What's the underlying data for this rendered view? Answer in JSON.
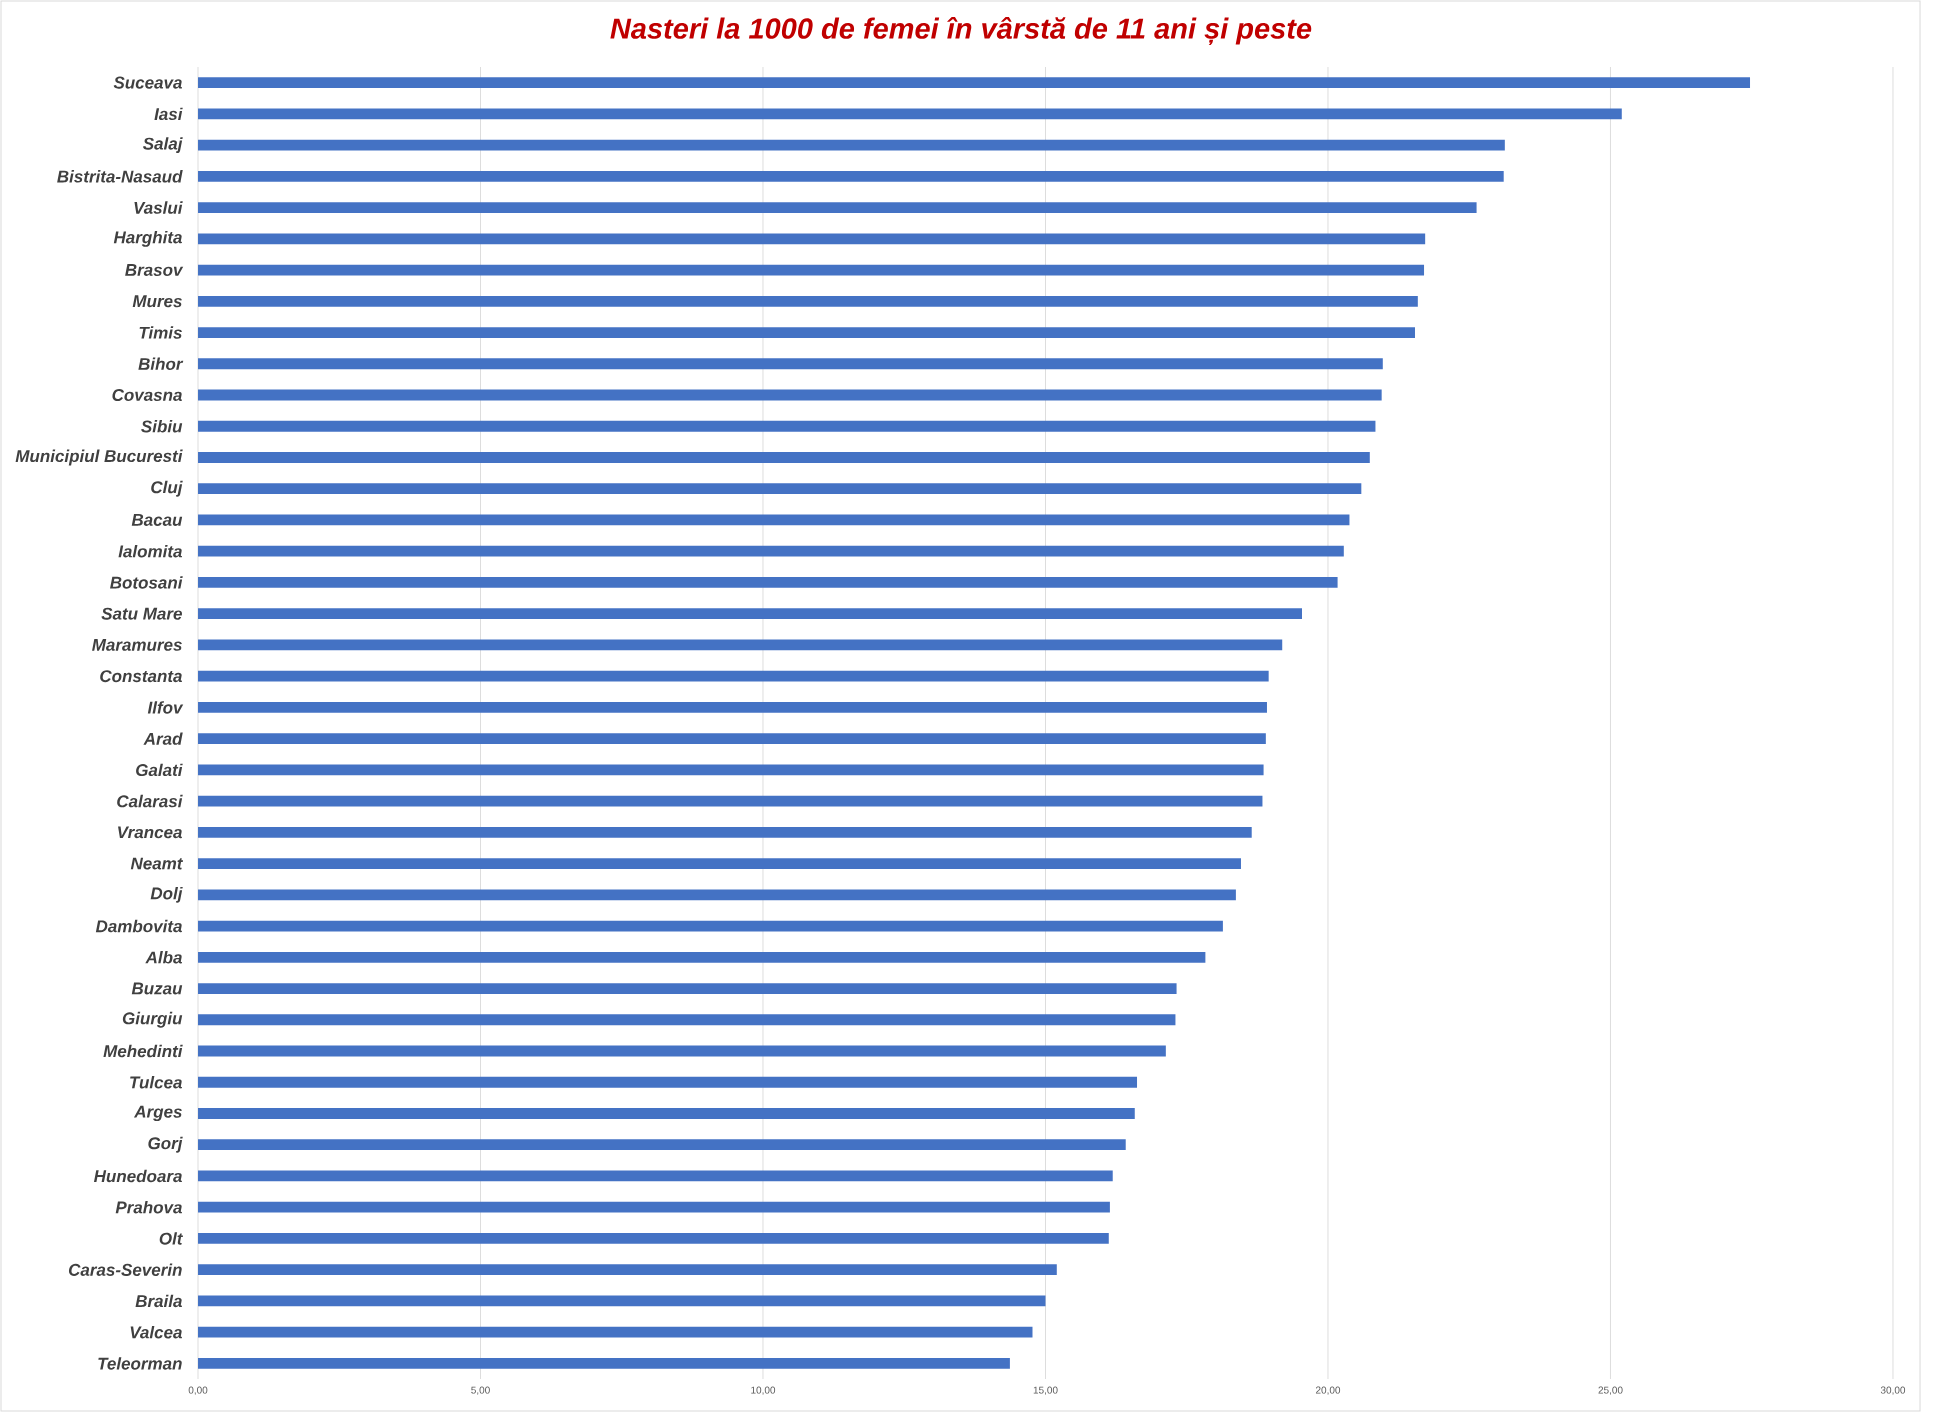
{
  "chart_data": {
    "type": "bar",
    "orientation": "horizontal",
    "title": "Nasteri la 1000 de femei în vârstă de 11 ani și peste",
    "categories": [
      "Suceava",
      "Iasi",
      "Salaj",
      "Bistrita-Nasaud",
      "Vaslui",
      "Harghita",
      "Brasov",
      "Mures",
      "Timis",
      "Bihor",
      "Covasna",
      "Sibiu",
      "Municipiul Bucuresti",
      "Cluj",
      "Bacau",
      "Ialomita",
      "Botosani",
      "Satu Mare",
      "Maramures",
      "Constanta",
      "Ilfov",
      "Arad",
      "Galati",
      "Calarasi",
      "Vrancea",
      "Neamt",
      "Dolj",
      "Dambovita",
      "Alba",
      "Buzau",
      "Giurgiu",
      "Mehedinti",
      "Tulcea",
      "Arges",
      "Gorj",
      "Hunedoara",
      "Prahova",
      "Olt",
      "Caras-Severin",
      "Braila",
      "Valcea",
      "Teleorman"
    ],
    "values": [
      27.47,
      25.2,
      23.13,
      23.11,
      22.63,
      21.72,
      21.7,
      21.59,
      21.54,
      20.97,
      20.95,
      20.84,
      20.74,
      20.59,
      20.38,
      20.28,
      20.17,
      19.54,
      19.19,
      18.95,
      18.92,
      18.9,
      18.86,
      18.84,
      18.65,
      18.46,
      18.37,
      18.14,
      17.83,
      17.32,
      17.3,
      17.13,
      16.62,
      16.58,
      16.42,
      16.19,
      16.14,
      16.12,
      15.2,
      15.0,
      14.77,
      14.37
    ],
    "color": "#4472c4",
    "xlim": [
      0,
      30
    ],
    "xticks": [
      {
        "value": 0,
        "label": "0,00"
      },
      {
        "value": 5,
        "label": "5,00"
      },
      {
        "value": 10,
        "label": "10,00"
      },
      {
        "value": 15,
        "label": "15,00"
      },
      {
        "value": 20,
        "label": "20,00"
      },
      {
        "value": 25,
        "label": "25,00"
      },
      {
        "value": 30,
        "label": "30,00"
      }
    ],
    "grid": "x"
  }
}
